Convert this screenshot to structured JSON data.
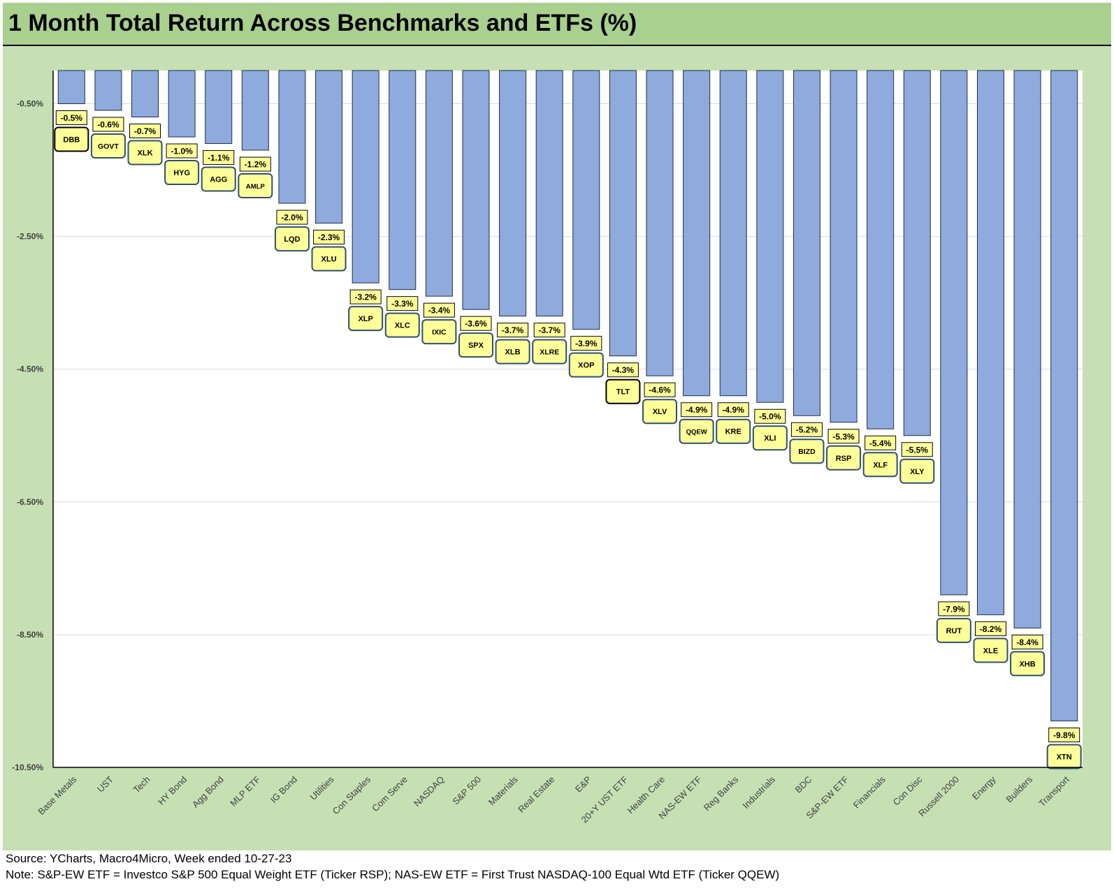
{
  "title": "1 Month Total Return Across Benchmarks and ETFs (%)",
  "footer": {
    "source": "Source: YCharts, Macro4Micro, Week ended 10-27-23",
    "note": "Note: S&P-EW ETF = Investco S&P 500 Equal Weight ETF (Ticker RSP); NAS-EW ETF = First Trust NASDAQ-100 Equal Wtd ETF (Ticker QQEW)"
  },
  "colors": {
    "title_band": "#a9d08e",
    "panel": "#c6e0b4",
    "bar": "#8faadc",
    "label_box": "#ffff99"
  },
  "chart_data": {
    "type": "bar",
    "title": "1 Month Total Return Across Benchmarks and ETFs (%)",
    "xlabel": "",
    "ylabel": "",
    "ylim": [
      -10.5,
      0
    ],
    "y_ticks": [
      -0.5,
      -2.5,
      -4.5,
      -6.5,
      -8.5,
      -10.5
    ],
    "y_tick_labels": [
      "-0.50%",
      "-2.50%",
      "-4.50%",
      "-6.50%",
      "-8.50%",
      "-10.50%"
    ],
    "grid": true,
    "categories": [
      "Base Metals",
      "UST",
      "Tech",
      "HY Bond",
      "Agg Bond",
      "MLP ETF",
      "IG Bond",
      "Utilities",
      "Con Staples",
      "Com Serve",
      "NASDAQ",
      "S&P 500",
      "Materials",
      "Real Estate",
      "E&P",
      "20+Y UST ETF",
      "Health Care",
      "NAS-EW ETF",
      "Reg Banks",
      "Industrials",
      "BDC",
      "S&P-EW ETF",
      "Financials",
      "Con Disc",
      "Russell 2000",
      "Energy",
      "Builders",
      "Transport"
    ],
    "values": [
      -0.5,
      -0.6,
      -0.7,
      -1.0,
      -1.1,
      -1.2,
      -2.0,
      -2.3,
      -3.2,
      -3.3,
      -3.4,
      -3.6,
      -3.7,
      -3.7,
      -3.9,
      -4.3,
      -4.6,
      -4.9,
      -4.9,
      -5.0,
      -5.2,
      -5.3,
      -5.4,
      -5.5,
      -7.9,
      -8.2,
      -8.4,
      -9.8
    ],
    "data_labels": [
      "-0.5%",
      "-0.6%",
      "-0.7%",
      "-1.0%",
      "-1.1%",
      "-1.2%",
      "-2.0%",
      "-2.3%",
      "-3.2%",
      "-3.3%",
      "-3.4%",
      "-3.6%",
      "-3.7%",
      "-3.7%",
      "-3.9%",
      "-4.3%",
      "-4.6%",
      "-4.9%",
      "-4.9%",
      "-5.0%",
      "-5.2%",
      "-5.3%",
      "-5.4%",
      "-5.5%",
      "-7.9%",
      "-8.2%",
      "-8.4%",
      "-9.8%"
    ],
    "tickers": [
      "DBB",
      "GOVT",
      "XLK",
      "HYG",
      "AGG",
      "AMLP",
      "LQD",
      "XLU",
      "XLP",
      "XLC",
      "IXIC",
      "SPX",
      "XLB",
      "XLRE",
      "XOP",
      "TLT",
      "XLV",
      "QQEW",
      "KRE",
      "XLI",
      "BIZD",
      "RSP",
      "XLF",
      "XLY",
      "RUT",
      "XLE",
      "XHB",
      "XTN"
    ],
    "highlighted_tickers": [
      "DBB",
      "TLT"
    ]
  }
}
